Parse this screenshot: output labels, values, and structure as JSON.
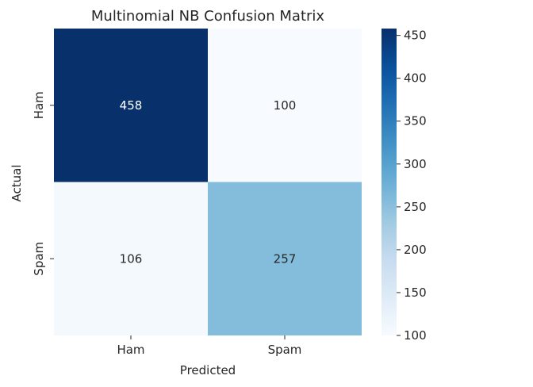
{
  "chart_data": {
    "type": "heatmap",
    "title": "Multinomial NB Confusion Matrix",
    "xlabel": "Predicted",
    "ylabel": "Actual",
    "x_categories": [
      "Ham",
      "Spam"
    ],
    "y_categories": [
      "Ham",
      "Spam"
    ],
    "values": [
      [
        458,
        100
      ],
      [
        106,
        257
      ]
    ],
    "colormap": "Blues",
    "colorbar": {
      "range": [
        100,
        458
      ],
      "ticks": [
        100,
        150,
        200,
        250,
        300,
        350,
        400,
        450
      ]
    },
    "colors": {
      "low": "#f7fbff",
      "high": "#08306b",
      "text_dark": "#262626",
      "text_light": "#ffffff"
    }
  }
}
